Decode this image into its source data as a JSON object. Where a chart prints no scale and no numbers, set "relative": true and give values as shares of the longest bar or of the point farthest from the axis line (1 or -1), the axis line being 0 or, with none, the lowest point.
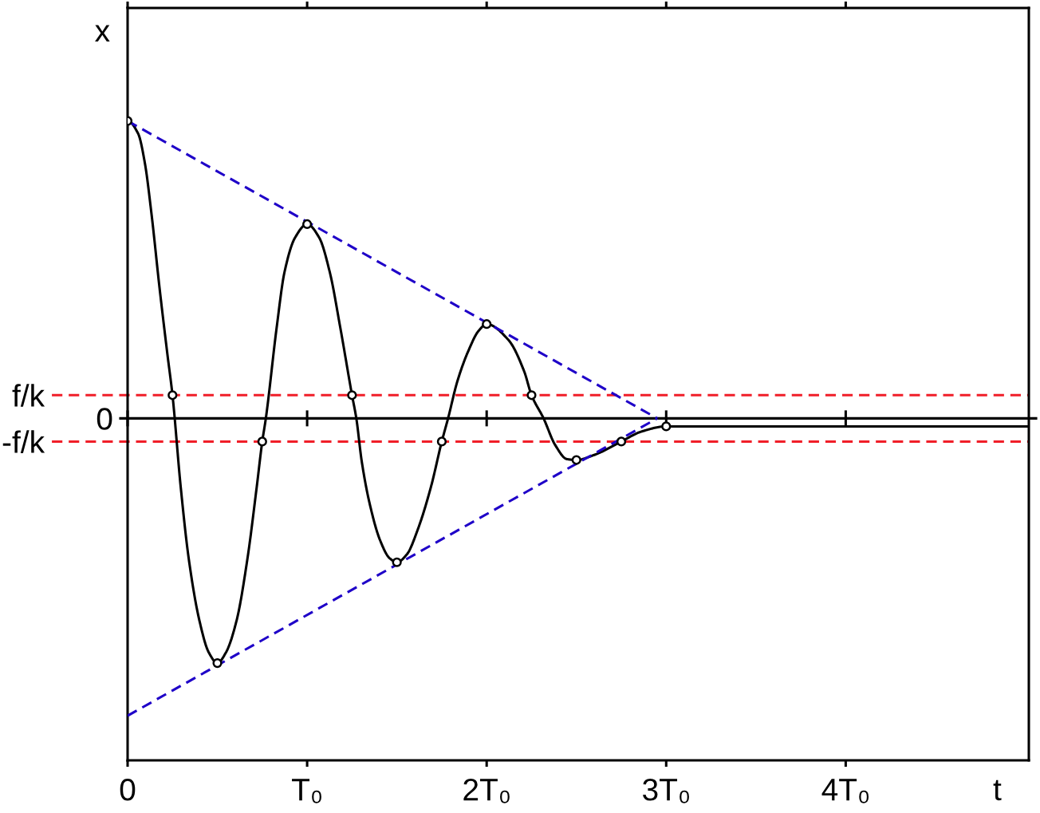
{
  "chart_data": {
    "type": "line",
    "relative": true,
    "xlabel": "t",
    "ylabel": "x",
    "xlim": [
      0,
      5.02
    ],
    "xticks": [
      0,
      {
        "value": 1,
        "label": "T₀"
      },
      {
        "value": 2,
        "label": "2T₀"
      },
      {
        "value": 3,
        "label": "3T₀"
      },
      {
        "value": 4,
        "label": "4T₀"
      }
    ],
    "ref_lines": [
      {
        "axis": "y",
        "value": 0,
        "label": "0",
        "color": "#000000",
        "line_style": "solid"
      },
      {
        "axis": "y",
        "value": 0.078,
        "label": "f/k",
        "color": "#f01e28",
        "line_style": "dashed"
      },
      {
        "axis": "y",
        "value": -0.078,
        "label": "-f/k",
        "color": "#f01e28",
        "line_style": "dashed"
      }
    ],
    "series": [
      {
        "color": "#000000",
        "line_style": "solid",
        "x": [
          0,
          0.059,
          0.096,
          0.133,
          0.178,
          0.222,
          0.25,
          0.296,
          0.341,
          0.4,
          0.452,
          0.5,
          0.548,
          0.607,
          0.667,
          0.719,
          0.75,
          0.77,
          0.83,
          0.874,
          0.933,
          1,
          1.067,
          1.126,
          1.185,
          1.25,
          1.274,
          1.304,
          1.348,
          1.407,
          1.459,
          1.5,
          1.556,
          1.615,
          1.689,
          1.75,
          1.785,
          1.837,
          1.896,
          1.956,
          2,
          2.122,
          2.209,
          2.25,
          2.317,
          2.382,
          2.447,
          2.5,
          2.599,
          2.75,
          2.859,
          3,
          5.02
        ],
        "values": [
          1,
          0.957,
          0.859,
          0.688,
          0.438,
          0.214,
          0.078,
          -0.232,
          -0.474,
          -0.68,
          -0.787,
          -0.823,
          -0.787,
          -0.68,
          -0.474,
          -0.232,
          -0.078,
          0,
          0.304,
          0.492,
          0.608,
          0.653,
          0.608,
          0.492,
          0.304,
          0.078,
          0,
          -0.144,
          -0.286,
          -0.411,
          -0.47,
          -0.484,
          -0.457,
          -0.376,
          -0.232,
          -0.078,
          0,
          0.125,
          0.224,
          0.295,
          0.317,
          0.263,
          0.158,
          0.078,
          0,
          -0.09,
          -0.137,
          -0.14,
          -0.123,
          -0.078,
          -0.045,
          -0.027,
          -0.027
        ]
      },
      {
        "type": "scatter",
        "color": "#000000",
        "marker": "circle",
        "x": [
          0,
          0.25,
          0.5,
          0.75,
          1,
          1.25,
          1.5,
          1.75,
          2,
          2.25,
          2.5,
          2.75,
          3
        ],
        "values": [
          1,
          0.078,
          -0.823,
          -0.078,
          0.653,
          0.078,
          -0.484,
          -0.078,
          0.317,
          0.078,
          -0.14,
          -0.078,
          -0.027
        ]
      },
      {
        "color": "#1e00c8",
        "line_style": "dashed",
        "x": [
          0,
          2.95
        ],
        "values": [
          1,
          0
        ]
      },
      {
        "color": "#1e00c8",
        "line_style": "dashed",
        "x": [
          0,
          2.95
        ],
        "values": [
          -1,
          0
        ]
      }
    ]
  }
}
